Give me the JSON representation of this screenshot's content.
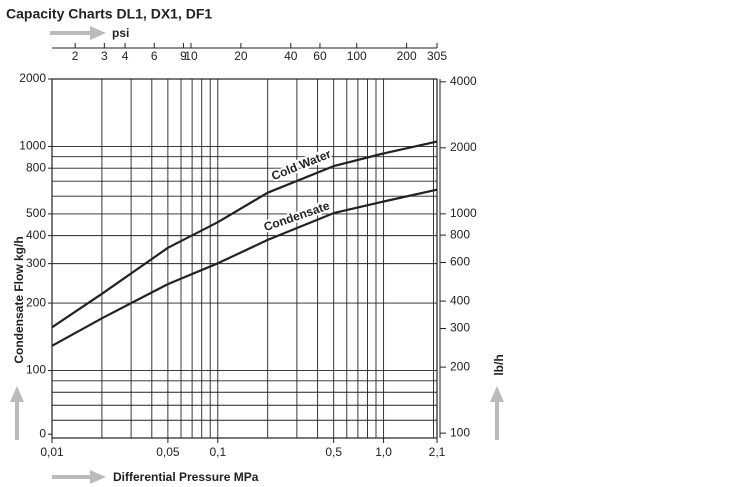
{
  "chart_data": {
    "type": "line",
    "title": "Capacity Charts DL1, DX1, DF1",
    "x_label": "Differential Pressure MPa",
    "x2_label": "psi",
    "y_label": "Condensate Flow kg/h",
    "y2_label": "lb/h",
    "log_x": true,
    "log_y": true,
    "x": [
      0.01,
      0.02,
      0.05,
      0.1,
      0.2,
      0.5,
      1.0,
      2.1
    ],
    "series": [
      {
        "name": "Cold Water",
        "color": "#222222",
        "values": [
          156,
          220,
          353,
          459,
          622,
          817,
          931,
          1051
        ]
      },
      {
        "name": "Condensate",
        "color": "#222222",
        "values": [
          129,
          171,
          243,
          301,
          383,
          504,
          568,
          641
        ]
      }
    ],
    "xlim": [
      0.01,
      2.1
    ],
    "xticks": [
      {
        "value": 0.01,
        "label": "0,01"
      },
      {
        "value": 0.05,
        "label": "0,05"
      },
      {
        "value": 0.1,
        "label": "0,1"
      },
      {
        "value": 0.5,
        "label": "0,5"
      },
      {
        "value": 1.0,
        "label": "1,0"
      },
      {
        "value": 2.1,
        "label": "2,1"
      }
    ],
    "x2lim": [
      1.45,
      305
    ],
    "x2ticks": [
      2,
      3,
      4,
      6,
      9,
      10,
      20,
      40,
      60,
      100,
      200,
      305
    ],
    "xgrid": [
      0.02,
      0.03,
      0.04,
      0.05,
      0.06,
      0.07,
      0.08,
      0.09,
      0.1,
      0.2,
      0.3,
      0.4,
      0.5,
      0.6,
      0.7,
      0.8,
      0.9,
      1.0,
      2.0
    ],
    "ylim": [
      50,
      2000
    ],
    "yticks": [
      {
        "value": 52,
        "label": "0"
      },
      100,
      200,
      300,
      400,
      500,
      800,
      1000,
      2000
    ],
    "ygrid": [
      60,
      70,
      80,
      90,
      100,
      200,
      300,
      400,
      500,
      600,
      700,
      800,
      900,
      1000
    ],
    "y2lim": [
      95,
      4120
    ],
    "y2ticks": [
      100,
      200,
      300,
      400,
      600,
      800,
      1000,
      2000,
      4000
    ],
    "grid": true
  }
}
